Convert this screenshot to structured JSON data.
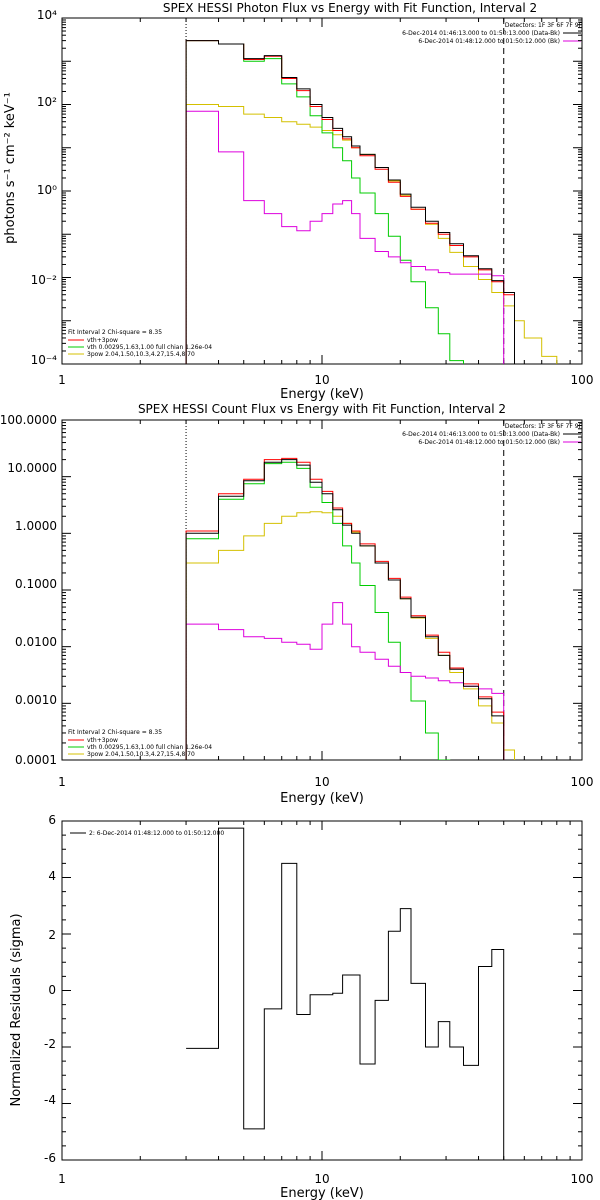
{
  "colors": {
    "total": "#000000",
    "sum": "#ff0000",
    "vth": "#00cc00",
    "pow": "#d4c000",
    "data": "#dd00dd",
    "axis": "#000000"
  },
  "chart_data": [
    {
      "type": "line",
      "title": "SPEX HESSI Photon Flux vs Energy with Fit Function, Interval 2",
      "xlabel": "Energy (keV)",
      "ylabel": "photons s⁻¹ cm⁻² keV⁻¹",
      "xscale": "log",
      "yscale": "log",
      "xlim": [
        1,
        100
      ],
      "ylim": [
        0.0001,
        10000
      ],
      "x_tick_labels": [
        "1",
        "10",
        "100"
      ],
      "y_tick_labels": [
        "10⁻⁴",
        "10⁻²",
        "10⁰",
        "10²",
        "10⁴"
      ],
      "legend_top": {
        "position": "top-right",
        "header": "Detectors: 1F 3F 6F 7F 9F",
        "entries": [
          {
            "label": "6-Dec-2014 01:46:13.000 to 01:50:13.000 (Data-Bk)",
            "color": "#000000"
          },
          {
            "label": "6-Dec-2014 01:48:12.000 to 01:50:12.000 (Bk)",
            "color": "#dd00dd"
          }
        ]
      },
      "legend_bottom": {
        "position": "bottom-left",
        "header": "Fit Interval 2   Chi-square = 8.35",
        "entries": [
          {
            "label": "vth+3pow",
            "color": "#ff0000"
          },
          {
            "label": "vth 0.00295,1.63,1.00  full chian 1.26e-04",
            "color": "#00cc00"
          },
          {
            "label": "3pow 2.04,1.50,10.3,4.27,15.4,8.70",
            "color": "#d4c000"
          }
        ]
      },
      "bin_edges": [
        3,
        4,
        5,
        6,
        7,
        8,
        9,
        10,
        11,
        12,
        13,
        14,
        16,
        18,
        20,
        22,
        25,
        28,
        31,
        35,
        40,
        45,
        50,
        55,
        60,
        70,
        80
      ],
      "vline_dotted": 3,
      "vline_dashed": 50,
      "series": [
        {
          "id": "total",
          "values": [
            3000,
            2500,
            1150,
            1350,
            420,
            230,
            100,
            50,
            28,
            18,
            11,
            7,
            3.5,
            1.8,
            0.85,
            0.42,
            0.2,
            0.11,
            0.06,
            0.032,
            0.016,
            0.0085,
            0.0045,
            null,
            null,
            null
          ]
        },
        {
          "id": "sum",
          "values": [
            3000,
            2500,
            1100,
            1300,
            400,
            210,
            90,
            45,
            25,
            16,
            10,
            6.5,
            3.2,
            1.6,
            0.75,
            0.38,
            0.18,
            0.1,
            0.055,
            0.03,
            0.015,
            0.008,
            0.004,
            null,
            null,
            null
          ]
        },
        {
          "id": "vth",
          "values": [
            3000,
            2500,
            1000,
            1150,
            300,
            150,
            55,
            22,
            10,
            5,
            2,
            0.9,
            0.3,
            0.09,
            0.025,
            0.008,
            0.002,
            0.0005,
            0.00012,
            null,
            null,
            null,
            null,
            null,
            null,
            null
          ]
        },
        {
          "id": "pow",
          "values": [
            100,
            90,
            60,
            50,
            40,
            35,
            30,
            25,
            20,
            15,
            10,
            7,
            3.5,
            1.7,
            0.8,
            0.38,
            0.17,
            0.08,
            0.038,
            0.018,
            0.009,
            0.0045,
            0.0022,
            0.001,
            0.0004,
            0.00015
          ]
        },
        {
          "id": "data",
          "values": [
            70,
            8,
            0.6,
            0.3,
            0.15,
            0.12,
            0.2,
            0.3,
            0.5,
            0.6,
            0.3,
            0.08,
            0.04,
            0.03,
            0.022,
            0.018,
            0.015,
            0.013,
            0.012,
            0.012,
            0.012,
            0.011,
            null,
            null,
            null,
            null
          ]
        }
      ]
    },
    {
      "type": "line",
      "title": "SPEX HESSI Count Flux vs Energy with Fit Function, Interval 2",
      "xlabel": "Energy (keV)",
      "ylabel": "",
      "xscale": "log",
      "yscale": "log",
      "xlim": [
        1,
        100
      ],
      "ylim": [
        0.0001,
        100
      ],
      "x_tick_labels": [
        "1",
        "10",
        "100"
      ],
      "y_tick_labels": [
        "0.0001",
        "0.0010",
        "0.0100",
        "0.1000",
        "1.0000",
        "10.0000",
        "100.0000"
      ],
      "legend_top": {
        "position": "top-right",
        "header": "Detectors: 1F 3F 6F 7F 9F",
        "entries": [
          {
            "label": "6-Dec-2014 01:46:13.000 to 01:50:13.000 (Data-Bk)",
            "color": "#000000"
          },
          {
            "label": "6-Dec-2014 01:48:12.000 to 01:50:12.000 (Bk)",
            "color": "#dd00dd"
          }
        ]
      },
      "legend_bottom": {
        "position": "bottom-left",
        "header": "Fit Interval 2   Chi-square = 8.35",
        "entries": [
          {
            "label": "vth+3pow",
            "color": "#ff0000"
          },
          {
            "label": "vth 0.00295,1.63,1.00  full chian 1.26e-04",
            "color": "#00cc00"
          },
          {
            "label": "3pow 2.04,1.50,10.3,4.27,15.4,8.70",
            "color": "#d4c000"
          }
        ]
      },
      "bin_edges": [
        3,
        4,
        5,
        6,
        7,
        8,
        9,
        10,
        11,
        12,
        13,
        14,
        16,
        18,
        20,
        22,
        25,
        28,
        31,
        35,
        40,
        45,
        50,
        55,
        60
      ],
      "vline_dotted": 3,
      "vline_dashed": 50,
      "series": [
        {
          "id": "total",
          "values": [
            1.0,
            4.5,
            8.5,
            18,
            20,
            16,
            8,
            5,
            2.6,
            1.4,
            1.0,
            0.6,
            0.3,
            0.15,
            0.07,
            0.033,
            0.015,
            0.007,
            0.004,
            0.002,
            0.0012,
            0.0006,
            null,
            null
          ]
        },
        {
          "id": "sum",
          "values": [
            1.1,
            5,
            9,
            20,
            21,
            18,
            9,
            5.5,
            2.8,
            1.5,
            1.1,
            0.65,
            0.32,
            0.16,
            0.075,
            0.035,
            0.016,
            0.008,
            0.0042,
            0.0022,
            0.0013,
            0.0007,
            null,
            null
          ]
        },
        {
          "id": "vth",
          "values": [
            0.8,
            4,
            7.5,
            17,
            18,
            14,
            6.5,
            3.5,
            1.5,
            0.6,
            0.3,
            0.12,
            0.04,
            0.012,
            0.0035,
            0.0011,
            0.0003,
            0.0001,
            null,
            null,
            null,
            null,
            null,
            null
          ]
        },
        {
          "id": "pow",
          "values": [
            0.3,
            0.5,
            0.9,
            1.5,
            2.0,
            2.3,
            2.4,
            2.3,
            2.0,
            1.5,
            1.05,
            0.6,
            0.3,
            0.15,
            0.07,
            0.032,
            0.014,
            0.007,
            0.0035,
            0.0018,
            0.0009,
            0.00045,
            0.00015,
            8e-05
          ]
        },
        {
          "id": "data",
          "values": [
            0.025,
            0.02,
            0.015,
            0.014,
            0.012,
            0.011,
            0.009,
            0.025,
            0.06,
            0.025,
            0.01,
            0.008,
            0.006,
            0.0045,
            0.0035,
            0.003,
            0.0028,
            0.0025,
            0.0023,
            0.002,
            0.0018,
            0.0015,
            null,
            null
          ]
        }
      ]
    },
    {
      "type": "line",
      "title": "",
      "xlabel": "Energy (keV)",
      "ylabel": "Normalized Residuals (sigma)",
      "xscale": "log",
      "yscale": "linear",
      "xlim": [
        1,
        100
      ],
      "ylim": [
        -6,
        6
      ],
      "x_tick_labels": [
        "1",
        "10",
        "100"
      ],
      "y_tick_labels": [
        "-6",
        "-4",
        "-2",
        "0",
        "2",
        "4",
        "6"
      ],
      "legend_top": {
        "position": "top-left",
        "entries": [
          {
            "label": "2:  6-Dec-2014 01:48:12.000 to 01:50:12.000",
            "color": "#000000"
          }
        ]
      },
      "bin_edges": [
        3,
        4,
        5,
        6,
        7,
        8,
        9,
        10,
        11,
        12,
        13,
        14,
        16,
        18,
        20,
        22,
        25,
        28,
        31,
        35,
        40,
        45,
        50
      ],
      "series": [
        {
          "id": "total",
          "values": [
            -2.05,
            5.75,
            -4.9,
            -0.65,
            4.5,
            -0.85,
            -0.15,
            -0.15,
            -0.1,
            0.55,
            0.55,
            -2.6,
            -0.35,
            2.1,
            2.9,
            0.25,
            -2.0,
            -1.1,
            -2.0,
            -2.65,
            0.85,
            1.45,
            1.95
          ]
        }
      ]
    }
  ]
}
